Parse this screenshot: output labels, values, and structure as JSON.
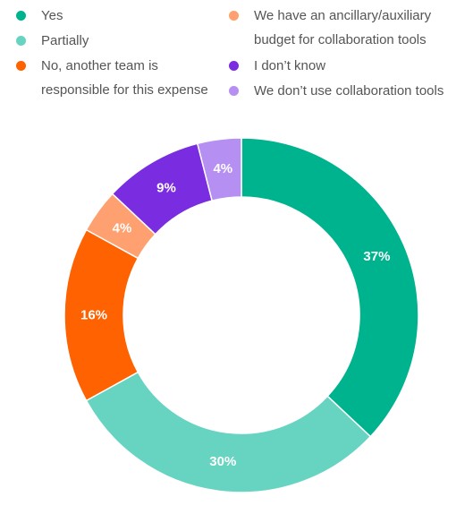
{
  "chart_data": {
    "type": "pie",
    "donut": true,
    "legend_position": "top",
    "slices": [
      {
        "name": "Yes",
        "value": 37,
        "label": "37%",
        "color": "#00b38f"
      },
      {
        "name": "Partially",
        "value": 30,
        "label": "30%",
        "color": "#66d4c1"
      },
      {
        "name": "No, another team is\nresponsible for this expense",
        "value": 16,
        "label": "16%",
        "color": "#ff6200"
      },
      {
        "name": "We have an ancillary/auxiliary\nbudget for collaboration tools",
        "value": 4,
        "label": "4%",
        "color": "#ffa070"
      },
      {
        "name": "I don’t know",
        "value": 9,
        "label": "9%",
        "color": "#7a2de0"
      },
      {
        "name": "We don’t use collaboration tools",
        "value": 4,
        "label": "4%",
        "color": "#b58ff2"
      }
    ]
  }
}
